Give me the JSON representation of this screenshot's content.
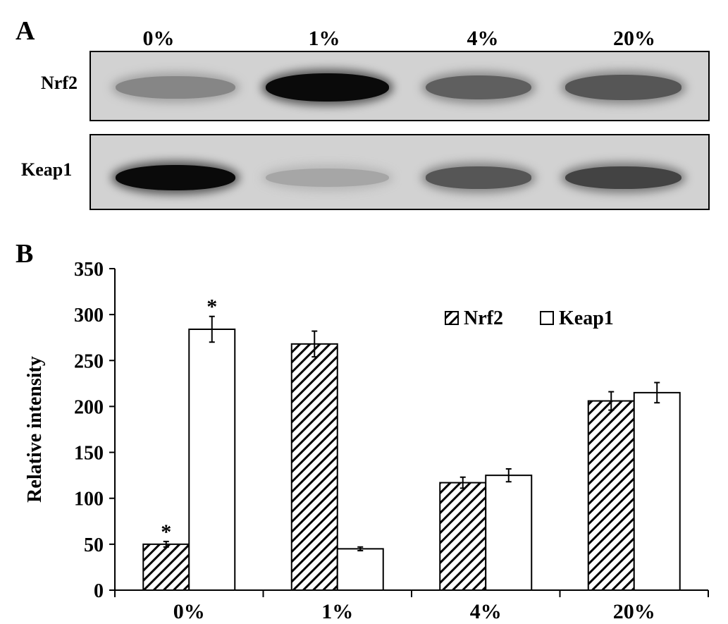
{
  "panel_a": {
    "letter": "A",
    "lanes": [
      "0%",
      "1%",
      "4%",
      "20%"
    ],
    "rows": [
      {
        "name": "Nrf2",
        "band_intensity": [
          0.35,
          1.0,
          0.55,
          0.6
        ]
      },
      {
        "name": "Keap1",
        "band_intensity": [
          1.0,
          0.18,
          0.6,
          0.7
        ]
      }
    ]
  },
  "panel_b": {
    "letter": "B"
  },
  "chart_data": {
    "type": "bar",
    "categories": [
      "0%",
      "1%",
      "4%",
      "20%"
    ],
    "series": [
      {
        "name": "Nrf2",
        "values": [
          50,
          268,
          117,
          206
        ],
        "errors": [
          3,
          14,
          6,
          10
        ],
        "pattern": "hatched",
        "significance": [
          "*",
          "",
          "",
          ""
        ]
      },
      {
        "name": "Keap1",
        "values": [
          284,
          45,
          125,
          215
        ],
        "errors": [
          14,
          2,
          7,
          11
        ],
        "pattern": "open",
        "significance": [
          "*",
          "",
          "",
          ""
        ]
      }
    ],
    "xlabel": "",
    "ylabel": "Relative intensity",
    "ylim": [
      0,
      350
    ],
    "yticks": [
      0,
      50,
      100,
      150,
      200,
      250,
      300,
      350
    ],
    "grid": false,
    "legend": "top-right"
  }
}
